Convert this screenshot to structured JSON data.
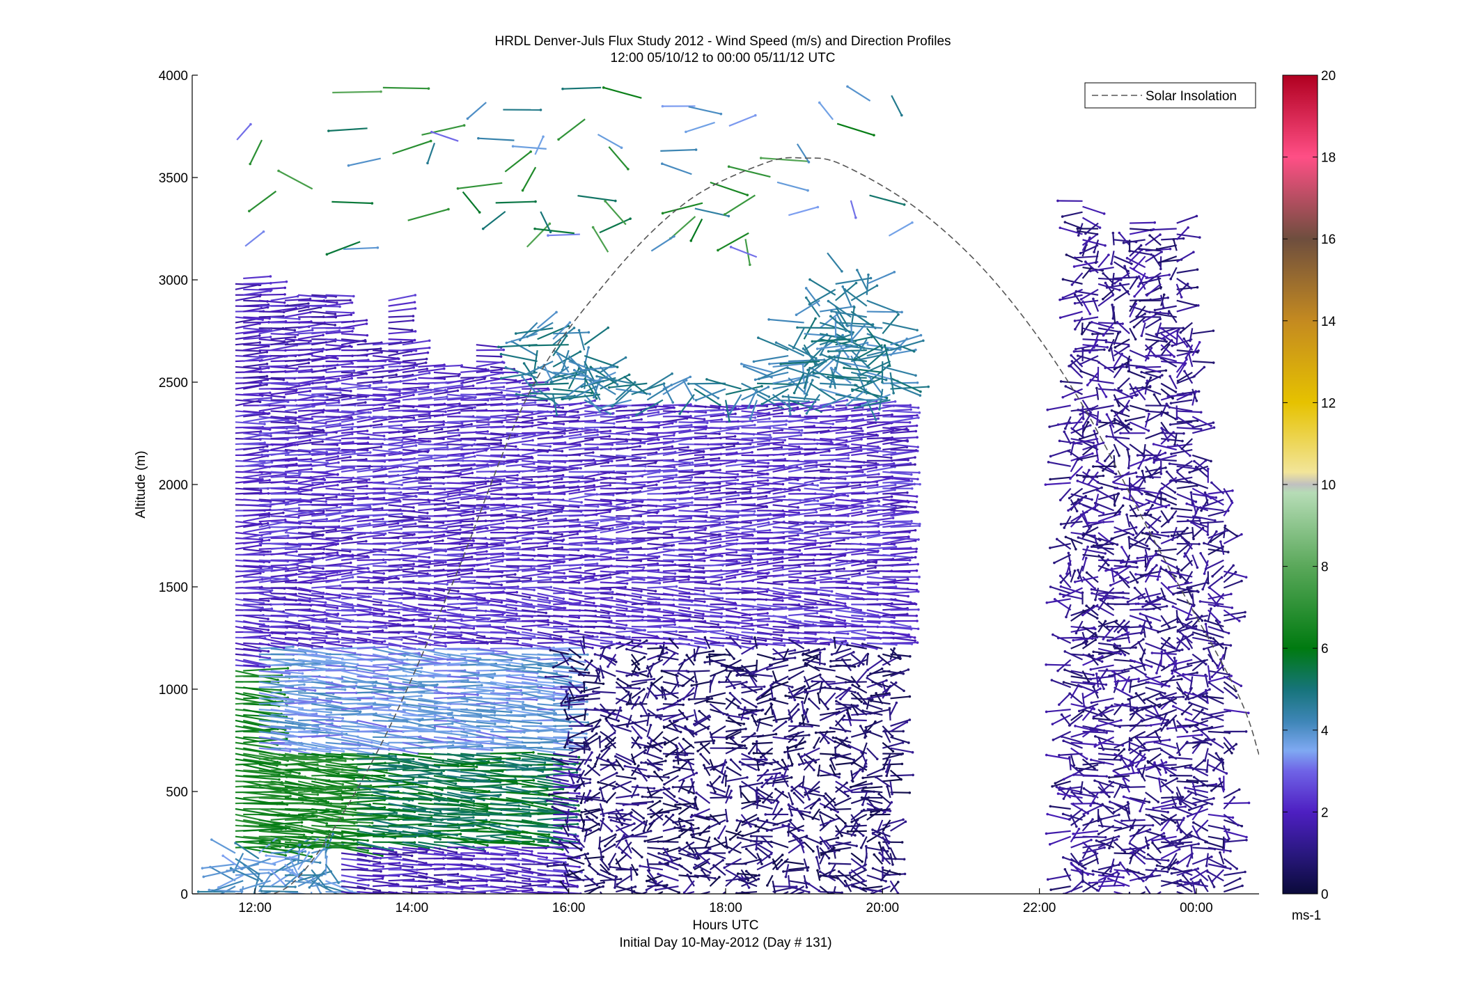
{
  "title": {
    "line1": "HRDL Denver-Juls Flux Study 2012 - Wind Speed (m/s) and Direction Profiles",
    "line2": "12:00 05/10/12 to 00:00 05/11/12  UTC"
  },
  "chart_data": {
    "type": "wind-barb profile (time-height)",
    "xlabel": "Hours UTC",
    "xsublabel": "Initial Day 10-May-2012 (Day # 131)",
    "ylabel": "Altitude (m)",
    "x_ticks": [
      "12:00",
      "14:00",
      "16:00",
      "18:00",
      "20:00",
      "22:00",
      "00:00"
    ],
    "x_tick_hours": [
      12,
      14,
      16,
      18,
      20,
      22,
      24
    ],
    "xlim_hours": [
      11.2,
      24.8
    ],
    "y_ticks": [
      0,
      500,
      1000,
      1500,
      2000,
      2500,
      3000,
      3500,
      4000
    ],
    "ylim": [
      0,
      4000
    ],
    "legend": {
      "entries": [
        "Solar Insolation"
      ],
      "placement": "top-right",
      "style": "dashed"
    },
    "colorbar": {
      "label": "ms-1",
      "range": [
        0,
        20
      ],
      "ticks": [
        0,
        2,
        4,
        6,
        8,
        10,
        12,
        14,
        16,
        18,
        20
      ],
      "stops": [
        {
          "v": 0,
          "c": "#0a0a3a"
        },
        {
          "v": 1,
          "c": "#2a1880"
        },
        {
          "v": 2,
          "c": "#4e1fc2"
        },
        {
          "v": 3,
          "c": "#6f63e6"
        },
        {
          "v": 3.5,
          "c": "#7fa9f2"
        },
        {
          "v": 4.2,
          "c": "#3f86b8"
        },
        {
          "v": 5,
          "c": "#16747a"
        },
        {
          "v": 6,
          "c": "#007a10"
        },
        {
          "v": 8,
          "c": "#5aa85a"
        },
        {
          "v": 9.8,
          "c": "#b6dcb6"
        },
        {
          "v": 10,
          "c": "#c0c0c0"
        },
        {
          "v": 10.3,
          "c": "#f2e59a"
        },
        {
          "v": 12,
          "c": "#e6c200"
        },
        {
          "v": 14,
          "c": "#c48a20"
        },
        {
          "v": 16,
          "c": "#6e4e3e"
        },
        {
          "v": 18,
          "c": "#ff4f86"
        },
        {
          "v": 20,
          "c": "#b00020"
        }
      ]
    },
    "solar_insolation": {
      "hours": [
        11.75,
        12.5,
        13.5,
        14.5,
        15.5,
        16.5,
        17.5,
        18.5,
        19.0,
        19.5,
        20.5,
        21.5,
        22.5,
        23.5,
        24.5,
        24.8
      ],
      "altitude_m": [
        0,
        60,
        650,
        1500,
        2450,
        3000,
        3380,
        3570,
        3595,
        3560,
        3330,
        2960,
        2420,
        1700,
        1000,
        680
      ]
    },
    "profile_hours": [
      11.75,
      11.85,
      12.05,
      12.2,
      12.38,
      12.55,
      12.72,
      12.9,
      13.1,
      13.3,
      13.5,
      13.7,
      13.88,
      14.08,
      14.28,
      14.45,
      14.62,
      14.82,
      15.0,
      15.2,
      15.4,
      15.6,
      15.8,
      16.0,
      16.2,
      16.4,
      16.6,
      16.8,
      17.0,
      17.2,
      17.4,
      17.6,
      17.8,
      18.0,
      18.2,
      18.4,
      18.6,
      18.8,
      19.0,
      19.2,
      19.4,
      19.6,
      19.8,
      20.0,
      20.1,
      22.4,
      22.55,
      22.75,
      22.95,
      23.15,
      23.35,
      23.55,
      23.75,
      23.95,
      24.15,
      24.35
    ],
    "profile_tops_m": [
      3000,
      3020,
      3000,
      2900,
      2900,
      2950,
      2950,
      2950,
      2800,
      2700,
      2700,
      2900,
      2700,
      2600,
      2600,
      2500,
      2600,
      2700,
      2600,
      2500,
      2500,
      2800,
      2800,
      2700,
      2700,
      2600,
      2600,
      2500,
      2500,
      2500,
      2400,
      2500,
      2400,
      2500,
      2500,
      2500,
      2600,
      2700,
      2800,
      2900,
      3000,
      2900,
      3000,
      2800,
      2700,
      2400,
      3400,
      3300,
      3200,
      3300,
      3200,
      3200,
      3300,
      2800,
      2100,
      2000
    ],
    "regimes": [
      {
        "hours": [
          11.7,
          13.0
        ],
        "altitude_m": [
          0,
          200
        ],
        "speed_ms": 4.0,
        "direction": "mixed"
      },
      {
        "hours": [
          11.7,
          13.2
        ],
        "altitude_m": [
          200,
          1100
        ],
        "speed_ms": 6.5,
        "direction": "westerly"
      },
      {
        "hours": [
          13.2,
          15.6
        ],
        "altitude_m": [
          250,
          900
        ],
        "speed_ms": 5.5,
        "direction": "westerly"
      },
      {
        "hours": [
          12.0,
          16.0
        ],
        "altitude_m": [
          700,
          1700
        ],
        "speed_ms": 3.6,
        "direction": "westerly"
      },
      {
        "hours": [
          11.7,
          20.1
        ],
        "altitude_m": [
          1200,
          2500
        ],
        "speed_ms": 2.2,
        "direction": "westerly"
      },
      {
        "hours": [
          16.0,
          20.1
        ],
        "altitude_m": [
          0,
          1200
        ],
        "speed_ms": 0.8,
        "direction": "variable"
      },
      {
        "hours": [
          22.4,
          24.4
        ],
        "altitude_m": [
          0,
          3400
        ],
        "speed_ms": 1.2,
        "direction": "variable"
      },
      {
        "hours": [
          15.5,
          20.1
        ],
        "altitude_m": [
          2400,
          3900
        ],
        "speed_ms": 4.5,
        "direction": "variable"
      }
    ]
  }
}
